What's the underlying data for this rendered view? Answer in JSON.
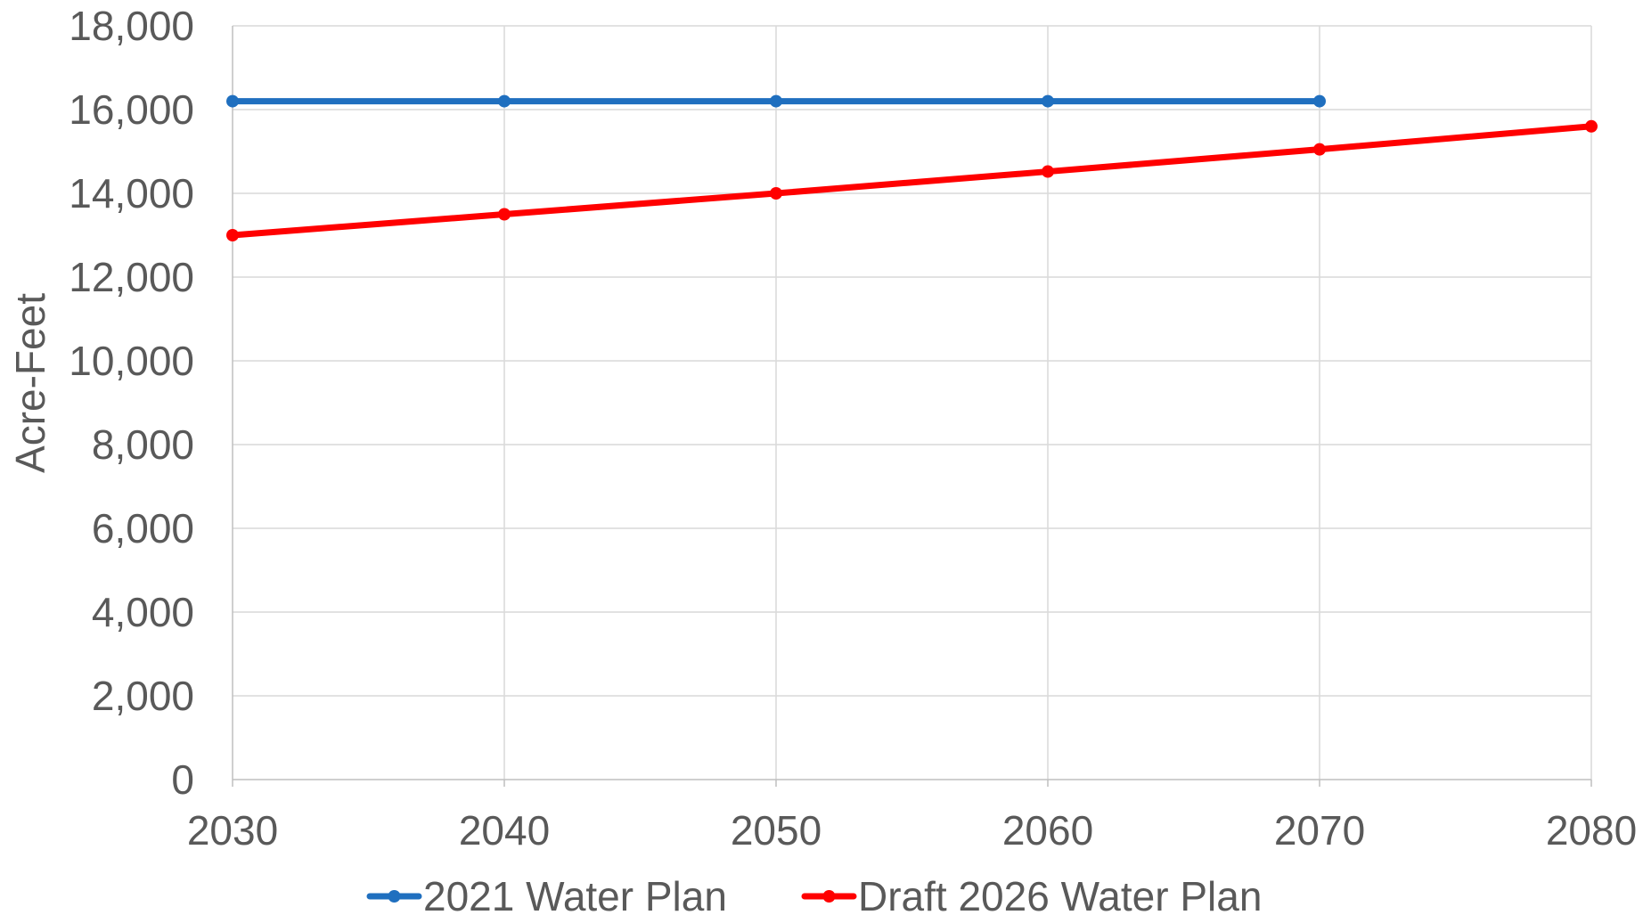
{
  "chart_data": {
    "type": "line",
    "title": "",
    "xlabel": "",
    "ylabel": "Acre-Feet",
    "x": [
      2030,
      2040,
      2050,
      2060,
      2070,
      2080
    ],
    "x_tick_labels": [
      "2030",
      "2040",
      "2050",
      "2060",
      "2070",
      "2080"
    ],
    "xlim": [
      2030,
      2080
    ],
    "ylim": [
      0,
      18000
    ],
    "y_ticks": [
      0,
      2000,
      4000,
      6000,
      8000,
      10000,
      12000,
      14000,
      16000,
      18000
    ],
    "y_tick_labels": [
      "0",
      "2,000",
      "4,000",
      "6,000",
      "8,000",
      "10,000",
      "12,000",
      "14,000",
      "16,000",
      "18,000"
    ],
    "grid": true,
    "legend_position": "bottom",
    "series": [
      {
        "name": "2021 Water Plan",
        "color": "#1f6fbf",
        "x": [
          2030,
          2040,
          2050,
          2060,
          2070
        ],
        "values": [
          16200,
          16200,
          16200,
          16200,
          16200
        ]
      },
      {
        "name": "Draft 2026 Water Plan",
        "color": "#ff0000",
        "x": [
          2030,
          2040,
          2050,
          2060,
          2070,
          2080
        ],
        "values": [
          13000,
          13500,
          14000,
          14520,
          15050,
          15600
        ]
      }
    ]
  }
}
